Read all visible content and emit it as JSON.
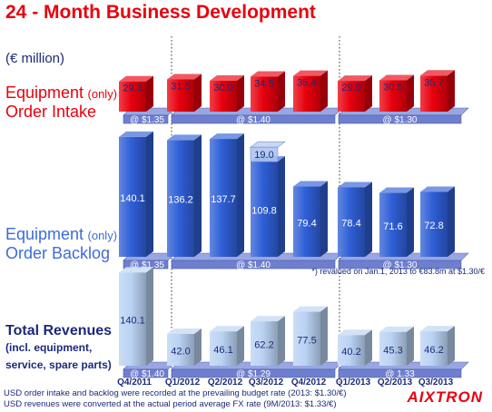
{
  "slide_title": "24 - Month Business Development",
  "unit_label": "(€ million)",
  "sections": {
    "intake": {
      "label_main": "Equipment",
      "label_qualifier": "(only)",
      "label_line2": "Order Intake"
    },
    "backlog": {
      "label_main": "Equipment",
      "label_qualifier": "(only)",
      "label_line2": "Order Backlog"
    },
    "revenues": {
      "label_line1": "Total Revenues",
      "label_line2": "(incl. equipment,",
      "label_line3": "service, spare parts)"
    }
  },
  "backlog_note": "*) revalued on Jan.1, 2013 to €83.8m at $1.30/€",
  "footnotes": {
    "line1": "USD order intake and backlog were recorded at the prevailing budget rate (2013: $1.30/€)",
    "line2": "USD revenues were converted at the actual period average FX rate (9M/2013: $1.33/€)"
  },
  "logo_text": "AIXTRON",
  "colors": {
    "title_red": "#e8000d",
    "label_navy": "#1b2a7a",
    "bar_red": "#e8000d",
    "bar_blue": "#2f5fd6",
    "bar_light_blue": "#b9d2f3",
    "fx_band": "#6f7fcf"
  },
  "chart_data": {
    "type": "bar",
    "categories": [
      "Q4/2011",
      "Q1/2012",
      "Q2/2012",
      "Q3/2012",
      "Q4/2012",
      "Q1/2013",
      "Q2/2013",
      "Q3/2013"
    ],
    "series": [
      {
        "name": "Equipment (only) Order Intake",
        "values": [
          29.3,
          31.5,
          30.0,
          34.5,
          35.4,
          29.9,
          30.5,
          35.7
        ]
      },
      {
        "name": "Equipment (only) Order Backlog",
        "values": [
          140.1,
          136.2,
          137.7,
          109.8,
          79.4,
          78.4,
          71.6,
          72.8
        ]
      },
      {
        "name": "Total Revenues",
        "values": [
          140.1,
          42.0,
          46.1,
          62.2,
          77.5,
          40.2,
          45.3,
          46.2
        ]
      }
    ],
    "annotations": [
      {
        "text": "19.0",
        "series": "Equipment (only) Order Backlog",
        "category": "Q3/2012",
        "kind": "stacked-segment"
      }
    ],
    "fx_rates": [
      {
        "series": "Equipment (only) Order Intake",
        "label": "@ $1.35",
        "from": "Q4/2011",
        "to": "Q4/2011"
      },
      {
        "series": "Equipment (only) Order Intake",
        "label": "@ $1.40",
        "from": "Q1/2012",
        "to": "Q4/2012"
      },
      {
        "series": "Equipment (only) Order Intake",
        "label": "@ $1.30",
        "from": "Q1/2013",
        "to": "Q3/2013"
      },
      {
        "series": "Equipment (only) Order Backlog",
        "label": "@ $1.35",
        "from": "Q4/2011",
        "to": "Q4/2011"
      },
      {
        "series": "Equipment (only) Order Backlog",
        "label": "@ $1.40",
        "from": "Q1/2012",
        "to": "Q4/2012"
      },
      {
        "series": "Equipment (only) Order Backlog",
        "label": "@ $1.30",
        "from": "Q1/2013",
        "to": "Q3/2013"
      },
      {
        "series": "Total Revenues",
        "label": "@ $1.40",
        "from": "Q4/2011",
        "to": "Q4/2011"
      },
      {
        "series": "Total Revenues",
        "label": "@ $1.29",
        "from": "Q1/2012",
        "to": "Q4/2012"
      },
      {
        "series": "Total Revenues",
        "label": "@ 1.33",
        "from": "Q1/2013",
        "to": "Q3/2013"
      }
    ],
    "title": "24 - Month Business Development",
    "ylabel": "(€ million)",
    "grid": false
  }
}
